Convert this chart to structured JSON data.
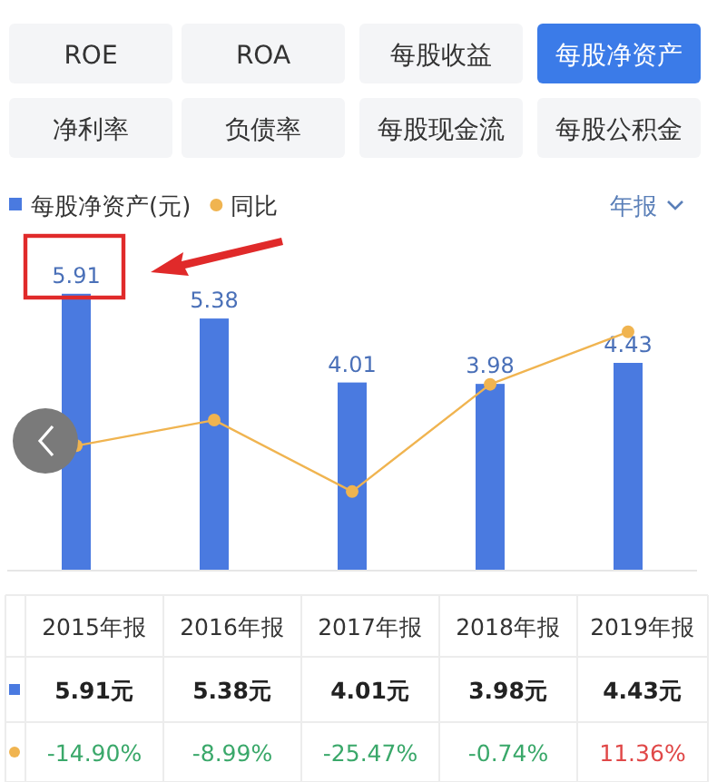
{
  "chart_data": {
    "type": "bar",
    "title": "每股净资产",
    "annotations": [
      "ROE",
      "ROA",
      "每股收益",
      "净利率",
      "负债率",
      "每股现金流",
      "每股公积金",
      "年报",
      "5.91元",
      "5.38元",
      "4.01元",
      "3.98元",
      "4.43元"
    ],
    "categories": [
      "2015年报",
      "2016年报",
      "2017年报",
      "2018年报",
      "2019年报"
    ],
    "series": [
      {
        "name": "每股净资产(元)",
        "color": "#4a7ae0",
        "values": [
          5.91,
          5.38,
          4.01,
          3.98,
          4.43
        ],
        "value_labels": [
          "5.91",
          "5.38",
          "4.01",
          "3.98",
          "4.43"
        ]
      },
      {
        "name": "同比",
        "type": "line",
        "axis": "y2",
        "color": "#f0b450",
        "values": [
          -14.9,
          -8.99,
          -25.47,
          -0.74,
          11.36
        ],
        "value_labels": [
          "-14.90%",
          "-8.99%",
          "-25.47%",
          "-0.74%",
          "11.36%"
        ]
      }
    ],
    "ylim": [
      0,
      7.15
    ],
    "y2lim": [
      -43.5,
      33.5
    ],
    "legend": "top left",
    "marker": "circle"
  }
}
